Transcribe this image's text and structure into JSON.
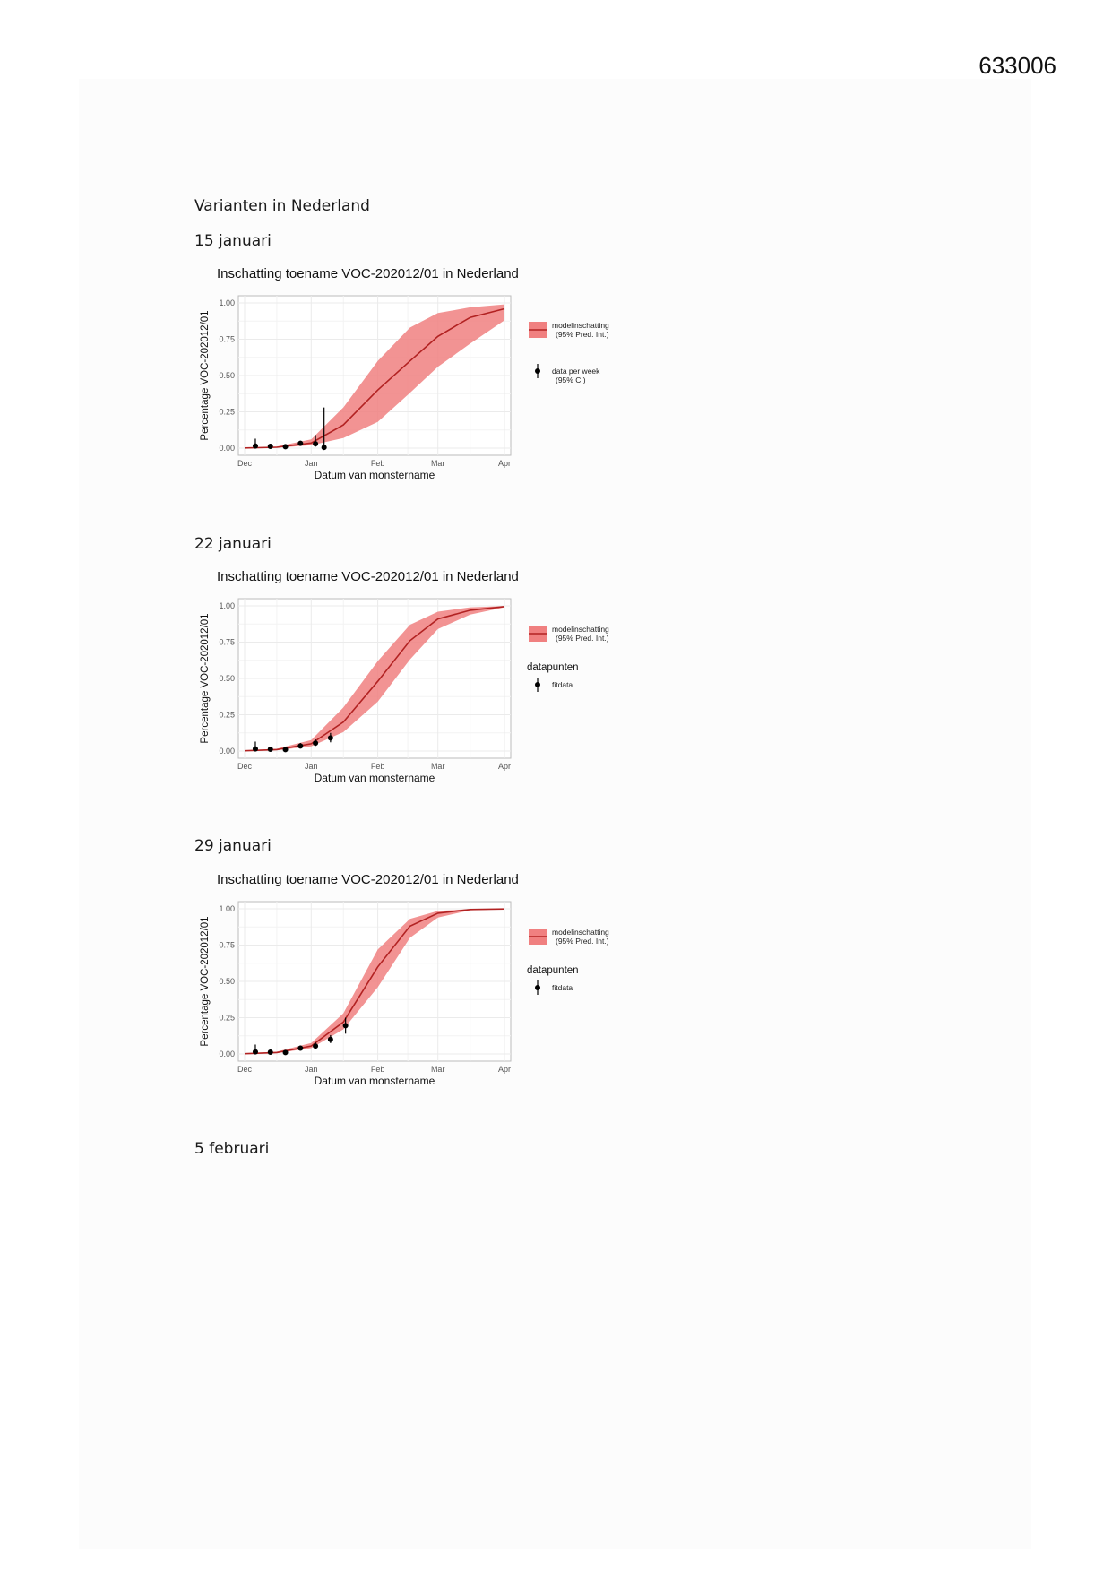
{
  "document": {
    "number": "633006",
    "heading": "Varianten in Nederland",
    "dates": [
      "15 januari",
      "22 januari",
      "29 januari",
      "5 februari"
    ]
  },
  "colors": {
    "band": "#f08080",
    "line": "#b22222",
    "points": "#000000",
    "grid": "#ebebeb"
  },
  "chart_data": [
    {
      "type": "line",
      "title": "Inschatting toename VOC-202012/01 in Nederland",
      "xlabel": "Datum van monstername",
      "ylabel": "Percentage VOC-202012/01",
      "x_ticks": [
        "Dec",
        "Jan",
        "Feb",
        "Mar",
        "Apr"
      ],
      "y_ticks": [
        "0.00",
        "0.25",
        "0.50",
        "0.75",
        "1.00"
      ],
      "xlim": [
        "2020-12-01",
        "2021-04-01"
      ],
      "ylim": [
        0,
        1
      ],
      "grid": true,
      "legend": {
        "position": "right",
        "title": "",
        "band_label_1": "modelinschatting",
        "band_label_2": "(95% Pred. Int.)",
        "point_label_1": "data per week",
        "point_label_2": "(95% CI)"
      },
      "model": {
        "x": [
          "2020-12-01",
          "2020-12-16",
          "2021-01-01",
          "2021-01-16",
          "2021-02-01",
          "2021-02-16",
          "2021-03-01",
          "2021-03-16",
          "2021-04-01"
        ],
        "y": [
          0.001,
          0.006,
          0.035,
          0.16,
          0.4,
          0.6,
          0.77,
          0.9,
          0.96
        ],
        "lower": [
          0.0,
          0.003,
          0.02,
          0.07,
          0.18,
          0.38,
          0.56,
          0.72,
          0.88
        ],
        "upper": [
          0.002,
          0.012,
          0.06,
          0.28,
          0.6,
          0.83,
          0.93,
          0.97,
          0.99
        ]
      },
      "points": {
        "x": [
          "2020-12-06",
          "2020-12-13",
          "2020-12-20",
          "2020-12-27",
          "2021-01-03",
          "2021-01-07"
        ],
        "y": [
          0.015,
          0.012,
          0.01,
          0.033,
          0.03,
          0.005
        ],
        "lower": [
          0.003,
          0.004,
          0.004,
          0.02,
          0.01,
          0.0
        ],
        "upper": [
          0.065,
          0.03,
          0.022,
          0.05,
          0.09,
          0.28
        ]
      }
    },
    {
      "type": "line",
      "title": "Inschatting toename VOC-202012/01 in Nederland",
      "xlabel": "Datum van monstername",
      "ylabel": "Percentage VOC-202012/01",
      "x_ticks": [
        "Dec",
        "Jan",
        "Feb",
        "Mar",
        "Apr"
      ],
      "y_ticks": [
        "0.00",
        "0.25",
        "0.50",
        "0.75",
        "1.00"
      ],
      "xlim": [
        "2020-12-01",
        "2021-04-01"
      ],
      "ylim": [
        0,
        1
      ],
      "grid": true,
      "legend": {
        "position": "right",
        "band_label_1": "modelinschatting",
        "band_label_2": "(95% Pred. Int.)",
        "title": "datapunten",
        "point_label_1": "fitdata",
        "point_label_2": ""
      },
      "model": {
        "x": [
          "2020-12-01",
          "2020-12-16",
          "2021-01-01",
          "2021-01-16",
          "2021-02-01",
          "2021-02-16",
          "2021-03-01",
          "2021-03-16",
          "2021-04-01"
        ],
        "y": [
          0.002,
          0.01,
          0.05,
          0.2,
          0.48,
          0.76,
          0.91,
          0.97,
          0.995
        ],
        "lower": [
          0.001,
          0.006,
          0.032,
          0.13,
          0.34,
          0.63,
          0.84,
          0.94,
          0.99
        ],
        "upper": [
          0.004,
          0.016,
          0.075,
          0.3,
          0.62,
          0.87,
          0.96,
          0.99,
          0.998
        ]
      },
      "points": {
        "x": [
          "2020-12-06",
          "2020-12-13",
          "2020-12-20",
          "2020-12-27",
          "2021-01-03",
          "2021-01-10"
        ],
        "y": [
          0.015,
          0.012,
          0.01,
          0.035,
          0.055,
          0.09
        ],
        "lower": [
          0.003,
          0.004,
          0.004,
          0.02,
          0.035,
          0.06
        ],
        "upper": [
          0.065,
          0.03,
          0.022,
          0.055,
          0.08,
          0.125
        ]
      }
    },
    {
      "type": "line",
      "title": "Inschatting toename VOC-202012/01 in Nederland",
      "xlabel": "Datum van monstername",
      "ylabel": "Percentage VOC-202012/01",
      "x_ticks": [
        "Dec",
        "Jan",
        "Feb",
        "Mar",
        "Apr"
      ],
      "y_ticks": [
        "0.00",
        "0.25",
        "0.50",
        "0.75",
        "1.00"
      ],
      "xlim": [
        "2020-12-01",
        "2021-04-01"
      ],
      "ylim": [
        0,
        1
      ],
      "grid": true,
      "legend": {
        "position": "right",
        "band_label_1": "modelinschatting",
        "band_label_2": "(95% Pred. Int.)",
        "title": "datapunten",
        "point_label_1": "fitdata",
        "point_label_2": ""
      },
      "model": {
        "x": [
          "2020-12-01",
          "2020-12-16",
          "2021-01-01",
          "2021-01-16",
          "2021-02-01",
          "2021-02-16",
          "2021-03-01",
          "2021-03-16",
          "2021-04-01"
        ],
        "y": [
          0.002,
          0.01,
          0.055,
          0.22,
          0.6,
          0.88,
          0.97,
          0.995,
          0.999
        ],
        "lower": [
          0.001,
          0.006,
          0.04,
          0.17,
          0.46,
          0.8,
          0.94,
          0.99,
          0.997
        ],
        "upper": [
          0.004,
          0.016,
          0.075,
          0.28,
          0.72,
          0.93,
          0.985,
          0.998,
          1.0
        ]
      },
      "points": {
        "x": [
          "2020-12-06",
          "2020-12-13",
          "2020-12-20",
          "2020-12-27",
          "2021-01-03",
          "2021-01-10",
          "2021-01-17"
        ],
        "y": [
          0.015,
          0.012,
          0.01,
          0.04,
          0.055,
          0.1,
          0.195
        ],
        "lower": [
          0.003,
          0.004,
          0.004,
          0.025,
          0.035,
          0.075,
          0.14
        ],
        "upper": [
          0.065,
          0.03,
          0.022,
          0.058,
          0.08,
          0.13,
          0.25
        ]
      }
    }
  ]
}
